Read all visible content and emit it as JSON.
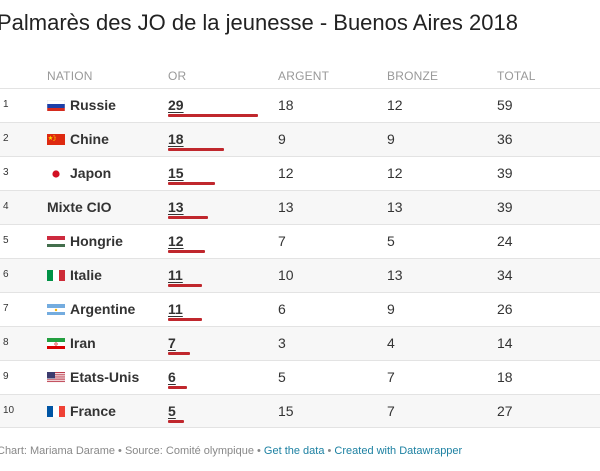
{
  "title": "Palmarès des JO de la jeunesse - Buenos Aires 2018",
  "columns": {
    "nation": "NATION",
    "gold": "OR",
    "silver": "ARGENT",
    "bronze": "BRONZE",
    "total": "TOTAL"
  },
  "accent_color": "#c0272d",
  "gold_max": 29,
  "rows": [
    {
      "rank": "1",
      "nation": "Russie",
      "flag": "russia-flag-icon",
      "gold": 29,
      "silver": "18",
      "bronze": "12",
      "total": "59"
    },
    {
      "rank": "2",
      "nation": "Chine",
      "flag": "china-flag-icon",
      "gold": 18,
      "silver": "9",
      "bronze": "9",
      "total": "36"
    },
    {
      "rank": "3",
      "nation": "Japon",
      "flag": "japan-flag-icon",
      "gold": 15,
      "silver": "12",
      "bronze": "12",
      "total": "39"
    },
    {
      "rank": "4",
      "nation": "Mixte CIO",
      "flag": "",
      "gold": 13,
      "silver": "13",
      "bronze": "13",
      "total": "39"
    },
    {
      "rank": "5",
      "nation": "Hongrie",
      "flag": "hungary-flag-icon",
      "gold": 12,
      "silver": "7",
      "bronze": "5",
      "total": "24"
    },
    {
      "rank": "6",
      "nation": "Italie",
      "flag": "italy-flag-icon",
      "gold": 11,
      "silver": "10",
      "bronze": "13",
      "total": "34"
    },
    {
      "rank": "7",
      "nation": "Argentine",
      "flag": "argentina-flag-icon",
      "gold": 11,
      "silver": "6",
      "bronze": "9",
      "total": "26"
    },
    {
      "rank": "8",
      "nation": "Iran",
      "flag": "iran-flag-icon",
      "gold": 7,
      "silver": "3",
      "bronze": "4",
      "total": "14"
    },
    {
      "rank": "9",
      "nation": "Etats-Unis",
      "flag": "usa-flag-icon",
      "gold": 6,
      "silver": "5",
      "bronze": "7",
      "total": "18"
    },
    {
      "rank": "10",
      "nation": "France",
      "flag": "france-flag-icon",
      "gold": 5,
      "silver": "15",
      "bronze": "7",
      "total": "27"
    }
  ],
  "footer": {
    "credit": "Chart: Mariama Darame • Source: Comité olympique • ",
    "get_data": "Get the data",
    "separator": " • ",
    "created_with": "Created with Datawrapper"
  }
}
